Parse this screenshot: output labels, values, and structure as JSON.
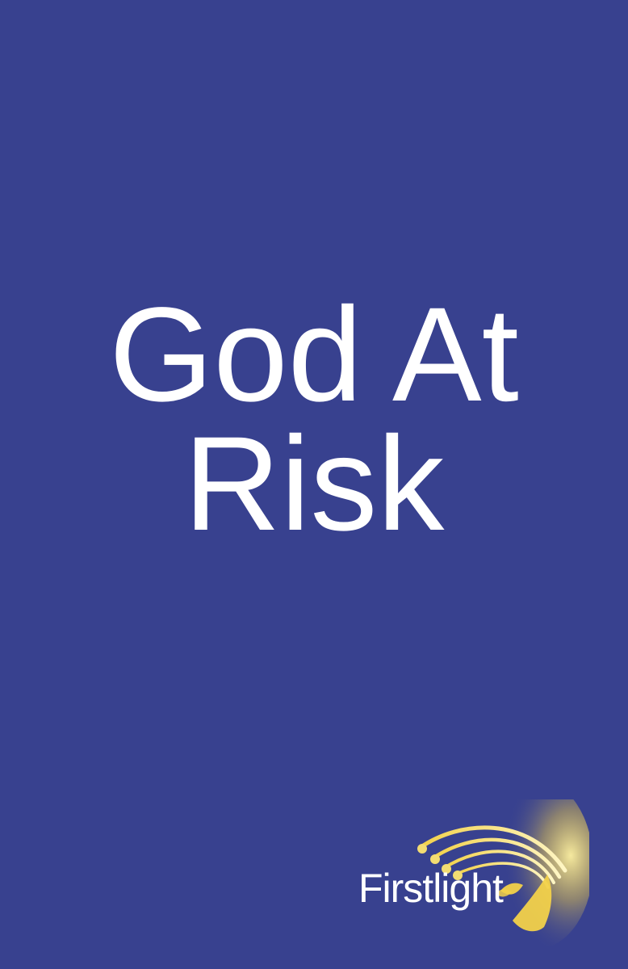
{
  "cover": {
    "background_color": "#38418f",
    "title_lines": [
      "God At",
      "Risk"
    ],
    "title_color": "#ffffff"
  },
  "publisher": {
    "name": "Firstlight",
    "logo_icon": "comet-trail-logo-icon",
    "logo_accent_color": "#f2d14a"
  }
}
